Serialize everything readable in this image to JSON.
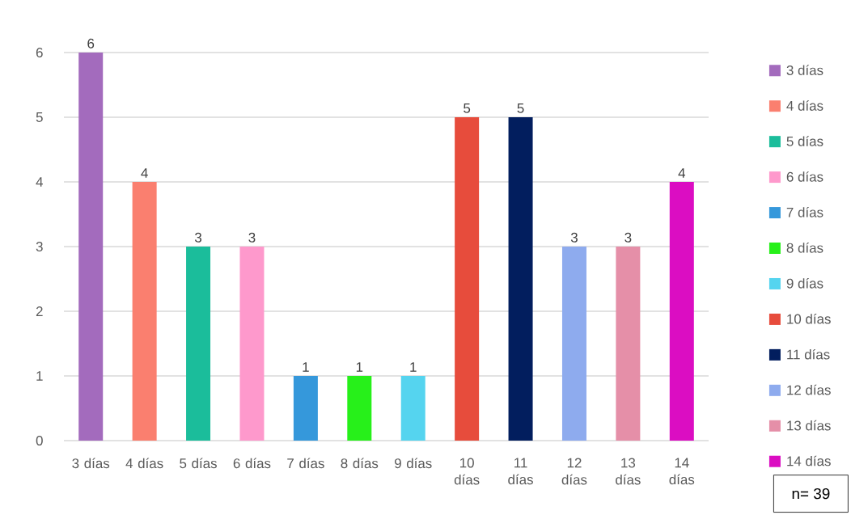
{
  "chart_data": {
    "type": "bar",
    "categories": [
      "3 días",
      "4 días",
      "5 días",
      "6 días",
      "7 días",
      "8 días",
      "9 días",
      "10 días",
      "11 días",
      "12 días",
      "13 días",
      "14 días"
    ],
    "series": [
      {
        "name": "3 días",
        "color": "#a36bbd",
        "values": [
          6,
          null,
          null,
          null,
          null,
          null,
          null,
          null,
          null,
          null,
          null,
          null
        ]
      },
      {
        "name": "4 días",
        "color": "#fa7f6f",
        "values": [
          null,
          4,
          null,
          null,
          null,
          null,
          null,
          null,
          null,
          null,
          null,
          null
        ]
      },
      {
        "name": "5 días",
        "color": "#1bbd9b",
        "values": [
          null,
          null,
          3,
          null,
          null,
          null,
          null,
          null,
          null,
          null,
          null,
          null
        ]
      },
      {
        "name": "6 días",
        "color": "#fe99cc",
        "values": [
          null,
          null,
          null,
          3,
          null,
          null,
          null,
          null,
          null,
          null,
          null,
          null
        ]
      },
      {
        "name": "7 días",
        "color": "#3598db",
        "values": [
          null,
          null,
          null,
          null,
          1,
          null,
          null,
          null,
          null,
          null,
          null,
          null
        ]
      },
      {
        "name": "8 días",
        "color": "#27f01a",
        "values": [
          null,
          null,
          null,
          null,
          null,
          1,
          null,
          null,
          null,
          null,
          null,
          null
        ]
      },
      {
        "name": "9 días",
        "color": "#55d4ef",
        "values": [
          null,
          null,
          null,
          null,
          null,
          null,
          1,
          null,
          null,
          null,
          null,
          null
        ]
      },
      {
        "name": "10 días",
        "color": "#e74c3c",
        "values": [
          null,
          null,
          null,
          null,
          null,
          null,
          null,
          5,
          null,
          null,
          null,
          null
        ]
      },
      {
        "name": "11 días",
        "color": "#021e5e",
        "values": [
          null,
          null,
          null,
          null,
          null,
          null,
          null,
          null,
          5,
          null,
          null,
          null
        ]
      },
      {
        "name": "12 días",
        "color": "#8eabee",
        "values": [
          null,
          null,
          null,
          null,
          null,
          null,
          null,
          null,
          null,
          3,
          null,
          null
        ]
      },
      {
        "name": "13 días",
        "color": "#e58fa8",
        "values": [
          null,
          null,
          null,
          null,
          null,
          null,
          null,
          null,
          null,
          null,
          3,
          null
        ]
      },
      {
        "name": "14 días",
        "color": "#db0dc2",
        "values": [
          null,
          null,
          null,
          null,
          null,
          null,
          null,
          null,
          null,
          null,
          null,
          4
        ]
      }
    ],
    "ylim": [
      0,
      6
    ],
    "yticks": [
      0,
      1,
      2,
      3,
      4,
      5,
      6
    ],
    "grid": "y",
    "legend": "right",
    "data_labels": true,
    "annotations": [
      "n= 39"
    ]
  }
}
